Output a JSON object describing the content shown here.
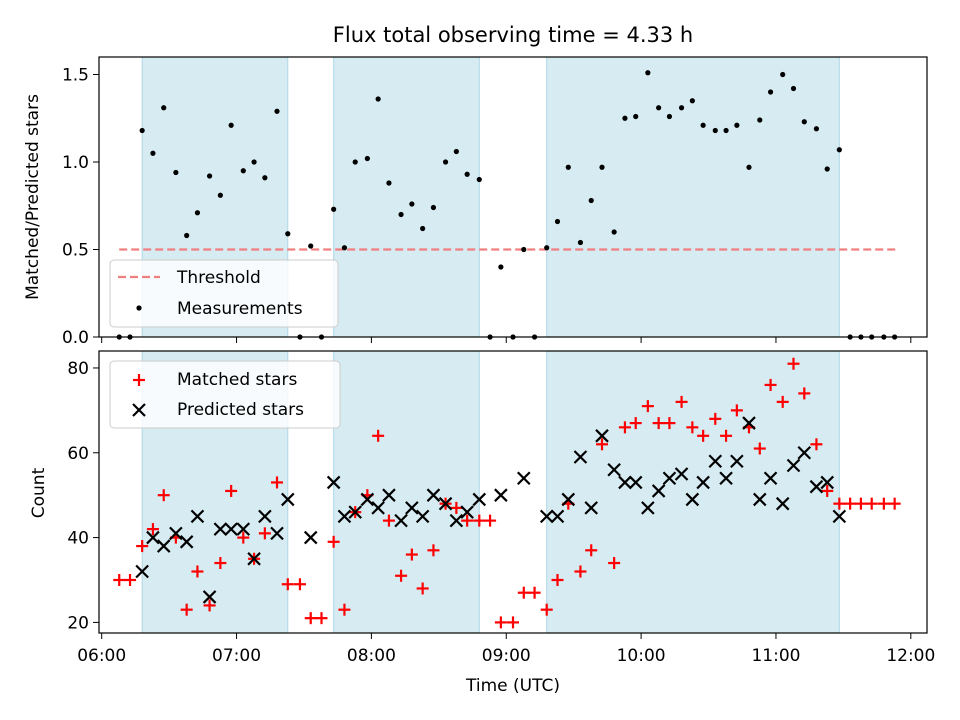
{
  "chart_data": [
    {
      "type": "scatter",
      "title": "Flux total observing time = 4.33 h",
      "ylabel": "Matched/Predicted stars",
      "ylim": [
        0,
        1.6
      ],
      "yticks": [
        "0.0",
        "0.5",
        "1.0",
        "1.5"
      ],
      "grid": false,
      "legend_position": "lower-left",
      "shaded_intervals_hours": [
        [
          6.3,
          7.38
        ],
        [
          7.72,
          8.8
        ],
        [
          9.3,
          11.47
        ]
      ],
      "threshold": {
        "name": "Threshold",
        "value": 0.5,
        "x_range": [
          6.13,
          11.9
        ],
        "color": "#f08080"
      },
      "series": [
        {
          "name": "Measurements",
          "color": "#000000",
          "x": [
            6.13,
            6.21,
            6.3,
            6.38,
            6.46,
            6.55,
            6.63,
            6.71,
            6.8,
            6.88,
            6.96,
            7.05,
            7.13,
            7.21,
            7.3,
            7.38,
            7.47,
            7.55,
            7.63,
            7.72,
            7.8,
            7.88,
            7.97,
            8.05,
            8.13,
            8.22,
            8.3,
            8.38,
            8.46,
            8.55,
            8.63,
            8.71,
            8.8,
            8.88,
            8.96,
            9.05,
            9.13,
            9.21,
            9.3,
            9.38,
            9.46,
            9.55,
            9.63,
            9.71,
            9.8,
            9.88,
            9.96,
            10.05,
            10.13,
            10.21,
            10.3,
            10.38,
            10.46,
            10.55,
            10.63,
            10.71,
            10.8,
            10.88,
            10.96,
            11.05,
            11.13,
            11.21,
            11.3,
            11.38,
            11.47,
            11.55,
            11.63,
            11.71,
            11.8,
            11.88
          ],
          "y": [
            0,
            0,
            1.18,
            1.05,
            1.31,
            0.94,
            0.58,
            0.71,
            0.92,
            0.81,
            1.21,
            0.95,
            1.0,
            0.91,
            1.29,
            0.59,
            0,
            0.52,
            0,
            0.73,
            0.51,
            1.0,
            1.02,
            1.36,
            0.88,
            0.7,
            0.76,
            0.62,
            0.74,
            1.0,
            1.06,
            0.93,
            0.9,
            0,
            0.4,
            0,
            0.5,
            0,
            0.51,
            0.66,
            0.97,
            0.54,
            0.78,
            0.97,
            0.6,
            1.25,
            1.26,
            1.51,
            1.31,
            1.26,
            1.31,
            1.35,
            1.21,
            1.18,
            1.18,
            1.21,
            0.97,
            1.24,
            1.4,
            1.5,
            1.42,
            1.23,
            1.19,
            0.96,
            1.07,
            0,
            0,
            0,
            0,
            0
          ]
        }
      ]
    },
    {
      "type": "scatter",
      "xlabel": "Time (UTC)",
      "ylabel": "Count",
      "xlim": [
        5.98,
        12.12
      ],
      "ylim": [
        17.5,
        84
      ],
      "xticks": [
        "06:00",
        "07:00",
        "08:00",
        "09:00",
        "10:00",
        "11:00",
        "12:00"
      ],
      "yticks": [
        "20",
        "40",
        "60",
        "80"
      ],
      "grid": false,
      "legend_position": "upper-left",
      "series": [
        {
          "name": "Matched stars",
          "marker": "plus",
          "color": "#ff0000",
          "x": [
            6.13,
            6.21,
            6.3,
            6.38,
            6.46,
            6.55,
            6.63,
            6.71,
            6.8,
            6.88,
            6.96,
            7.05,
            7.13,
            7.21,
            7.3,
            7.38,
            7.47,
            7.55,
            7.63,
            7.72,
            7.8,
            7.88,
            7.97,
            8.05,
            8.13,
            8.22,
            8.3,
            8.38,
            8.46,
            8.55,
            8.63,
            8.71,
            8.8,
            8.88,
            8.96,
            9.05,
            9.13,
            9.21,
            9.3,
            9.38,
            9.46,
            9.55,
            9.63,
            9.71,
            9.8,
            9.88,
            9.96,
            10.05,
            10.13,
            10.21,
            10.3,
            10.38,
            10.46,
            10.55,
            10.63,
            10.71,
            10.8,
            10.88,
            10.96,
            11.05,
            11.13,
            11.21,
            11.3,
            11.38,
            11.47,
            11.55,
            11.63,
            11.71,
            11.8,
            11.88
          ],
          "y": [
            30,
            30,
            38,
            42,
            50,
            40,
            23,
            32,
            24,
            34,
            51,
            40,
            35,
            41,
            53,
            29,
            29,
            21,
            21,
            39,
            23,
            46,
            50,
            64,
            44,
            31,
            36,
            28,
            37,
            48,
            47,
            44,
            44,
            44,
            20,
            20,
            27,
            27,
            23,
            30,
            48,
            32,
            37,
            62,
            34,
            66,
            67,
            71,
            67,
            67,
            72,
            66,
            64,
            68,
            64,
            70,
            66,
            61,
            76,
            72,
            81,
            74,
            62,
            51,
            48,
            48,
            48,
            48,
            48,
            48
          ]
        },
        {
          "name": "Predicted stars",
          "marker": "x",
          "color": "#000000",
          "x": [
            6.3,
            6.38,
            6.46,
            6.55,
            6.63,
            6.71,
            6.8,
            6.88,
            6.96,
            7.05,
            7.13,
            7.21,
            7.3,
            7.38,
            7.55,
            7.72,
            7.8,
            7.88,
            7.97,
            8.05,
            8.13,
            8.22,
            8.3,
            8.38,
            8.46,
            8.55,
            8.63,
            8.71,
            8.8,
            8.96,
            9.13,
            9.3,
            9.38,
            9.46,
            9.55,
            9.63,
            9.71,
            9.8,
            9.88,
            9.96,
            10.05,
            10.13,
            10.21,
            10.3,
            10.38,
            10.46,
            10.55,
            10.63,
            10.71,
            10.8,
            10.88,
            10.96,
            11.05,
            11.13,
            11.21,
            11.3,
            11.38,
            11.47
          ],
          "y": [
            32,
            40,
            38,
            41,
            39,
            45,
            26,
            42,
            42,
            42,
            35,
            45,
            41,
            49,
            40,
            53,
            45,
            46,
            49,
            47,
            50,
            44,
            47,
            45,
            50,
            48,
            44,
            46,
            49,
            50,
            54,
            45,
            45,
            49,
            59,
            47,
            64,
            56,
            53,
            53,
            47,
            51,
            54,
            55,
            49,
            53,
            58,
            54,
            58,
            67,
            49,
            54,
            48,
            57,
            60,
            52,
            53,
            45
          ]
        }
      ]
    }
  ]
}
